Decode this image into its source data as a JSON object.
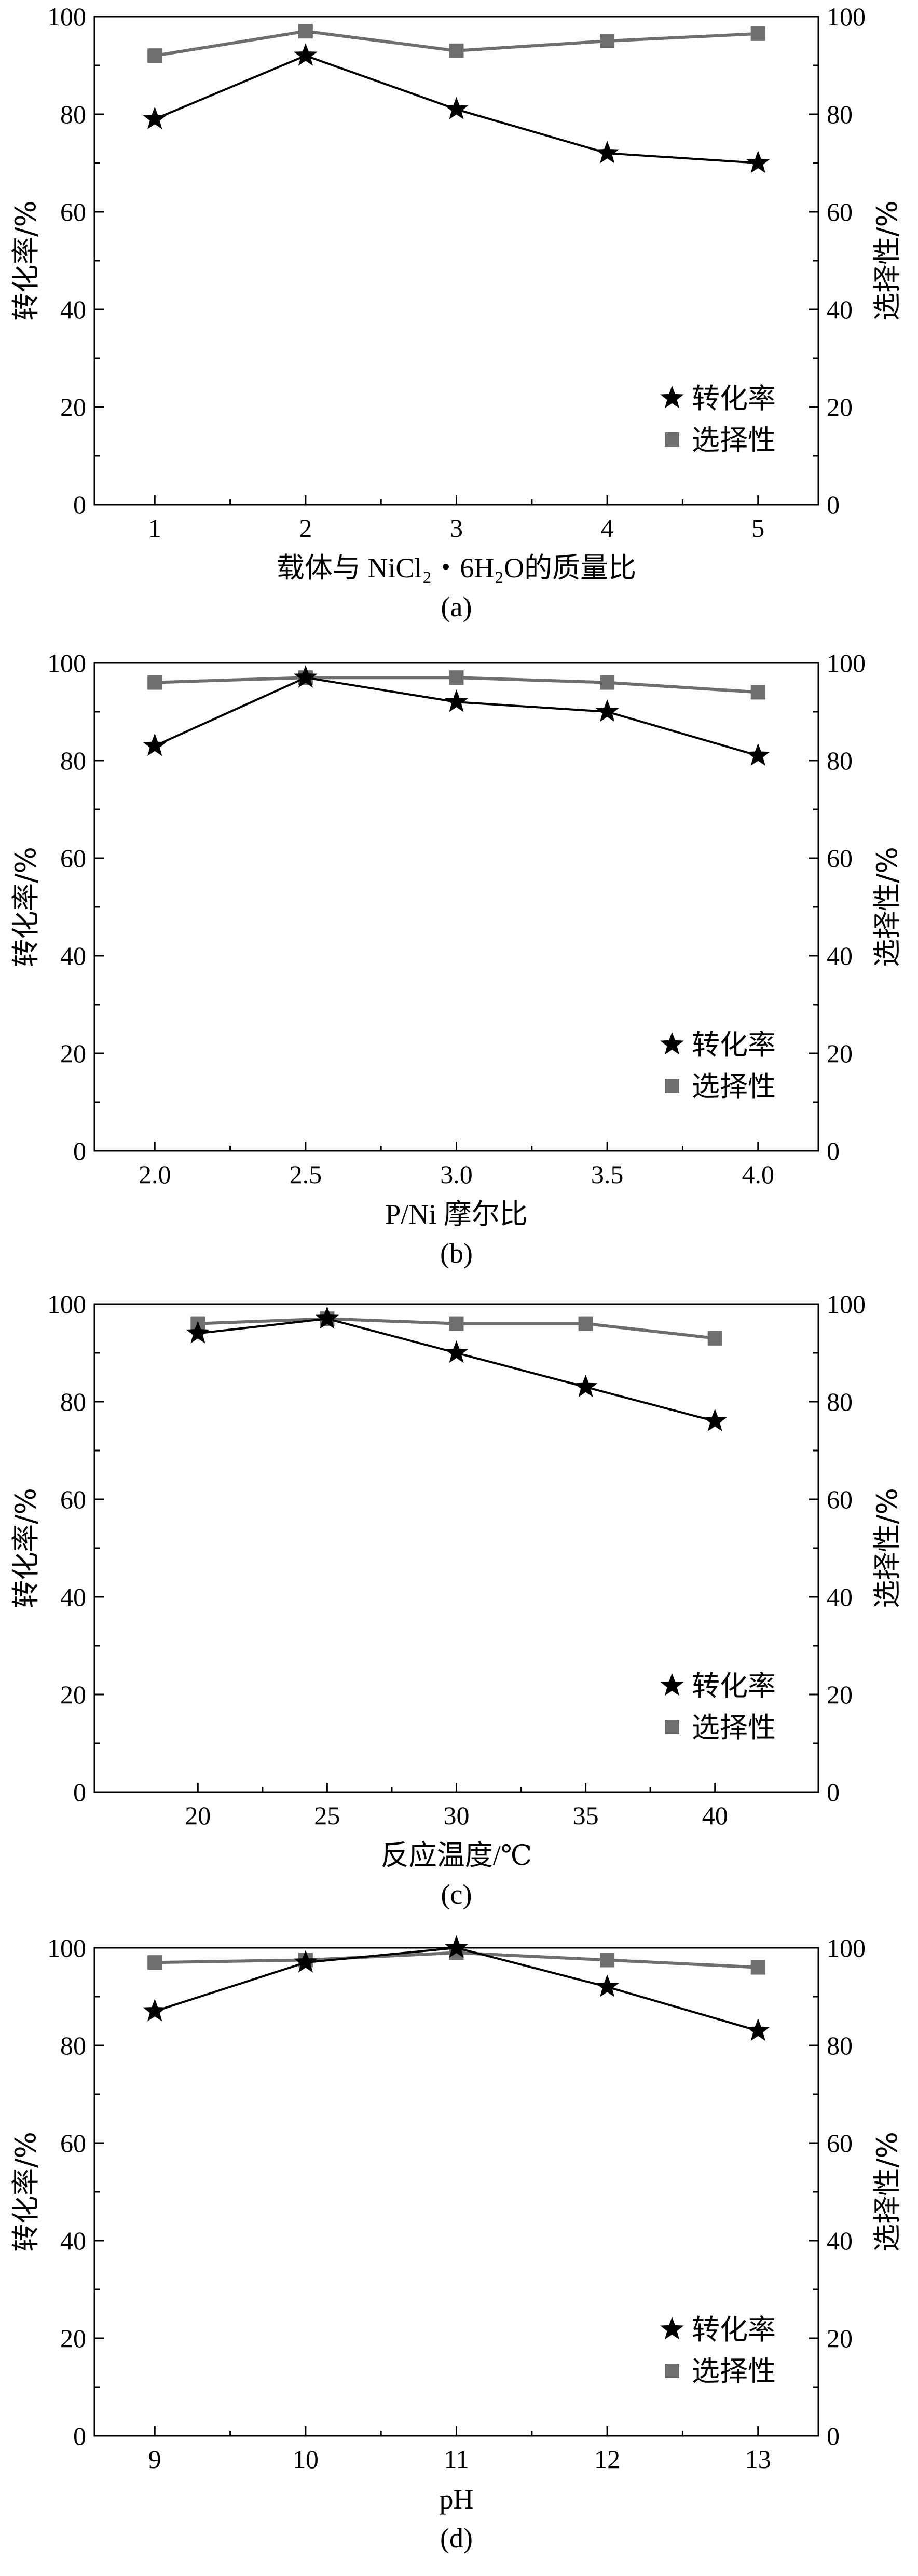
{
  "colors": {
    "conversion": "#000000",
    "selectivity": "#6e6e6e",
    "axis": "#000000"
  },
  "chart_data": [
    {
      "type": "line",
      "panel": "(a)",
      "xlabel": "载体与 NiCl₂・6H₂O的质量比",
      "ylabel_left": "转化率/%",
      "ylabel_right": "选择性/%",
      "x": [
        1,
        2,
        3,
        4,
        5
      ],
      "x_ticks": [
        "1",
        "2",
        "3",
        "4",
        "5"
      ],
      "xlim": [
        0.6,
        5.4
      ],
      "ylim": [
        0,
        100
      ],
      "y_ticks": [
        "0",
        "20",
        "40",
        "60",
        "80",
        "100"
      ],
      "legend_position": "bottom-right",
      "series": [
        {
          "name": "转化率",
          "marker": "star",
          "values": [
            79,
            92,
            81,
            72,
            70
          ]
        },
        {
          "name": "选择性",
          "marker": "square",
          "values": [
            92,
            97,
            93,
            95,
            96.5
          ]
        }
      ]
    },
    {
      "type": "line",
      "panel": "(b)",
      "xlabel": "P/Ni 摩尔比",
      "ylabel_left": "转化率/%",
      "ylabel_right": "选择性/%",
      "x": [
        2.0,
        2.5,
        3.0,
        3.5,
        4.0
      ],
      "x_ticks": [
        "2.0",
        "2.5",
        "3.0",
        "3.5",
        "4.0"
      ],
      "xlim": [
        1.8,
        4.2
      ],
      "ylim": [
        0,
        100
      ],
      "y_ticks": [
        "0",
        "20",
        "40",
        "60",
        "80",
        "100"
      ],
      "legend_position": "bottom-right",
      "series": [
        {
          "name": "转化率",
          "marker": "star",
          "values": [
            83,
            97,
            92,
            90,
            81
          ]
        },
        {
          "name": "选择性",
          "marker": "square",
          "values": [
            96,
            97,
            97,
            96,
            94
          ]
        }
      ]
    },
    {
      "type": "line",
      "panel": "(c)",
      "xlabel": "反应温度/℃",
      "ylabel_left": "转化率/%",
      "ylabel_right": "选择性/%",
      "x": [
        20,
        25,
        30,
        35,
        40
      ],
      "x_ticks": [
        "20",
        "25",
        "30",
        "35",
        "40"
      ],
      "xlim": [
        16,
        44
      ],
      "ylim": [
        0,
        100
      ],
      "y_ticks": [
        "0",
        "20",
        "40",
        "60",
        "80",
        "100"
      ],
      "legend_position": "bottom-right",
      "series": [
        {
          "name": "转化率",
          "marker": "star",
          "values": [
            94,
            97,
            90,
            83,
            76
          ]
        },
        {
          "name": "选择性",
          "marker": "square",
          "values": [
            96,
            97,
            96,
            96,
            93
          ]
        }
      ]
    },
    {
      "type": "line",
      "panel": "(d)",
      "xlabel": "pH",
      "ylabel_left": "转化率/%",
      "ylabel_right": "选择性/%",
      "x": [
        9,
        10,
        11,
        12,
        13
      ],
      "x_ticks": [
        "9",
        "10",
        "11",
        "12",
        "13"
      ],
      "xlim": [
        8.6,
        13.4
      ],
      "ylim": [
        0,
        100
      ],
      "y_ticks": [
        "0",
        "20",
        "40",
        "60",
        "80",
        "100"
      ],
      "legend_position": "bottom-right",
      "series": [
        {
          "name": "转化率",
          "marker": "star",
          "values": [
            87,
            97,
            100,
            92,
            83
          ]
        },
        {
          "name": "选择性",
          "marker": "square",
          "values": [
            97,
            97.5,
            99,
            97.5,
            96
          ]
        }
      ]
    }
  ]
}
